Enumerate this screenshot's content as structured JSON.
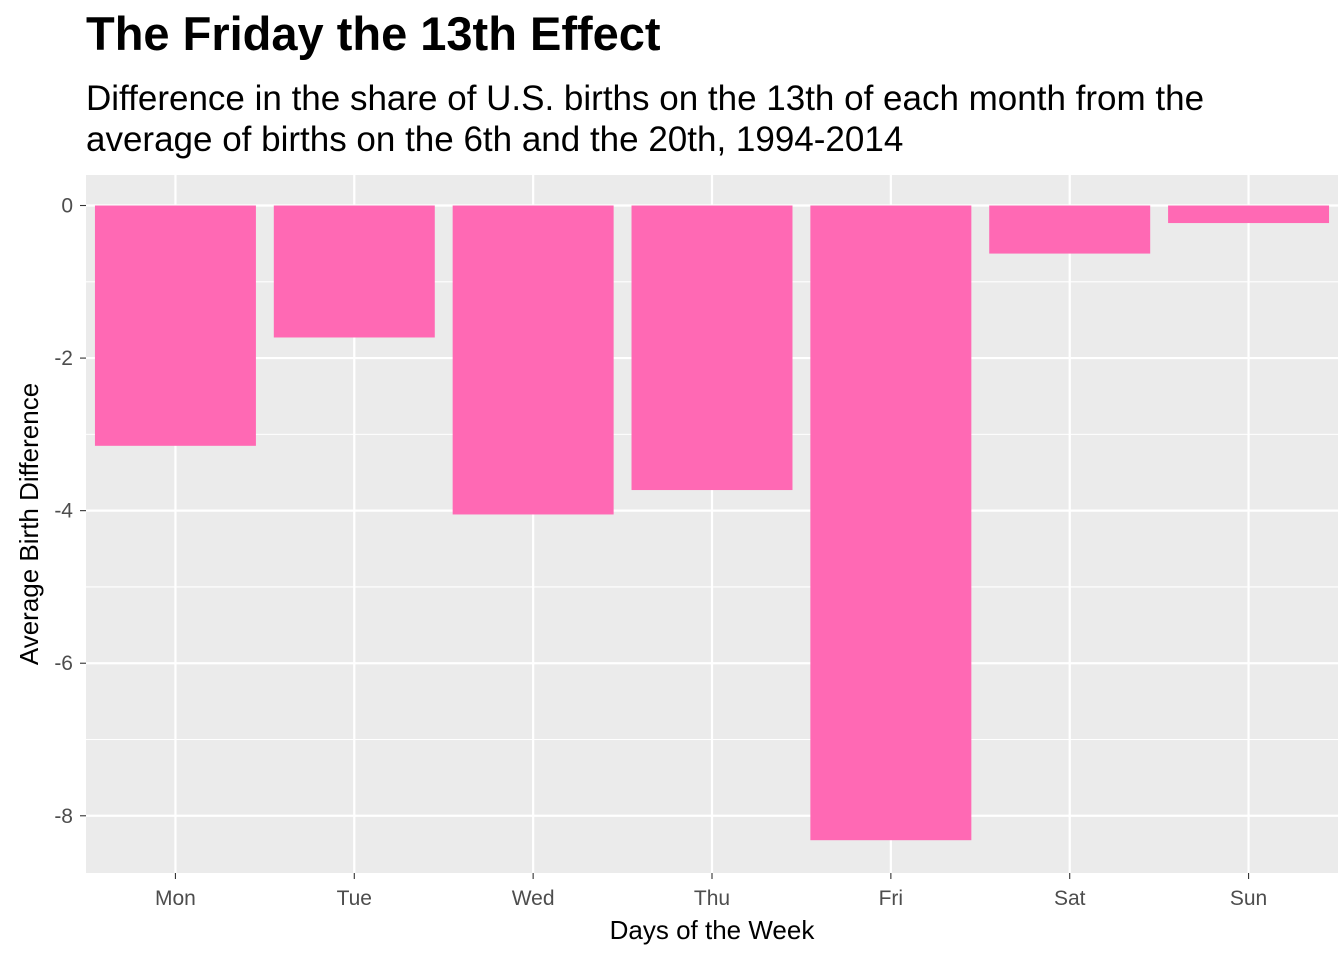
{
  "chart_data": {
    "type": "bar",
    "title": "The Friday the 13th Effect",
    "subtitle": "Difference in the share of U.S. births on the 13th of each month from the\naverage of births on the 6th and the 20th, 1994-2014",
    "xlabel": "Days of the Week",
    "ylabel": "Average Birth Difference",
    "categories": [
      "Mon",
      "Tue",
      "Wed",
      "Thu",
      "Fri",
      "Sat",
      "Sun"
    ],
    "values": [
      -3.15,
      -1.73,
      -4.05,
      -3.73,
      -8.32,
      -0.63,
      -0.23
    ],
    "ylim": [
      -8.75,
      0.4
    ],
    "yticks": [
      0,
      -2,
      -4,
      -6,
      -8
    ],
    "ytick_labels": [
      "0",
      "-2",
      "-4",
      "-6",
      "-8"
    ],
    "grid": true,
    "bar_color": "#FF69B4",
    "panel_background": "#EBEBEB",
    "grid_color": "#FFFFFF"
  }
}
